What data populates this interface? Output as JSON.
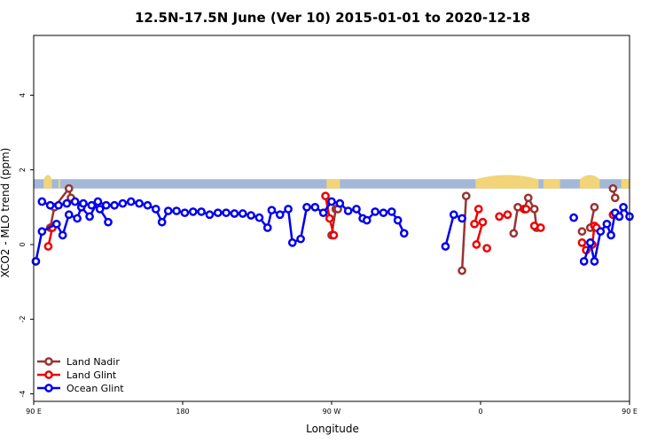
{
  "chart_data": {
    "type": "line",
    "title": "12.5N-17.5N June (Ver 10)   2015-01-01 to 2020-12-18",
    "xlabel": "Longitude",
    "ylabel": "XCO2 - MLO trend (ppm)",
    "xlim": [
      90,
      450
    ],
    "ylim": [
      -4.2,
      5.6
    ],
    "x_ticks": [
      {
        "value": 90,
        "label": "90 E"
      },
      {
        "value": 180,
        "label": "180"
      },
      {
        "value": 270,
        "label": "90 W"
      },
      {
        "value": 360,
        "label": "0"
      },
      {
        "value": 450,
        "label": "90 E"
      }
    ],
    "x_extra_ticks": [
      450
    ],
    "y_ticks": [
      {
        "value": -4,
        "label": "-4"
      },
      {
        "value": -2,
        "label": "-2"
      },
      {
        "value": 0,
        "label": "0"
      },
      {
        "value": 2,
        "label": "2"
      },
      {
        "value": 4,
        "label": "4"
      }
    ],
    "land_band": {
      "ymin": 1.5,
      "ymax": 1.75,
      "ocean_color": "#a3b8d8",
      "land_color": "#f2d479",
      "land_segments": [
        [
          96,
          101
        ],
        [
          105,
          106
        ],
        [
          267,
          275
        ],
        [
          357,
          395
        ],
        [
          398,
          408
        ],
        [
          420,
          432
        ],
        [
          445,
          450
        ]
      ]
    },
    "legend_position": "bottom-left",
    "series": [
      {
        "name": "Land Nadir",
        "color": "#993333",
        "segments": [
          [
            [
              100,
              0.45
            ],
            [
              102.5,
              1.0
            ],
            [
              111.3,
              1.5
            ],
            [
              112.5,
              1.25
            ]
          ],
          [
            [
              270,
              0.25
            ],
            [
              272.5,
              0.95
            ],
            [
              273.8,
              0.95
            ]
          ],
          [
            [
              348.8,
              -0.7
            ],
            [
              351.3,
              1.3
            ]
          ],
          [
            [
              380,
              0.3
            ],
            [
              382.5,
              1.0
            ],
            [
              386.3,
              0.95
            ],
            [
              388.8,
              1.25
            ],
            [
              392.5,
              0.95
            ],
            [
              393.8,
              0.45
            ]
          ],
          [
            [
              421.3,
              0.35
            ]
          ],
          [
            [
              426.3,
              0.45
            ],
            [
              428.8,
              1.0
            ]
          ],
          [
            [
              440,
              1.5
            ],
            [
              441.3,
              1.25
            ]
          ]
        ]
      },
      {
        "name": "Land Glint",
        "color": "#ee0000",
        "segments": [
          [
            [
              98.8,
              -0.05
            ],
            [
              101.3,
              0.45
            ]
          ],
          [
            [
              266.3,
              1.3
            ],
            [
              268.8,
              0.7
            ],
            [
              271.3,
              0.25
            ]
          ],
          [
            [
              356.3,
              0.55
            ],
            [
              358.8,
              0.95
            ]
          ],
          [
            [
              357.5,
              0.0
            ],
            [
              361.3,
              0.6
            ]
          ],
          [
            [
              363.8,
              -0.1
            ]
          ],
          [
            [
              371.3,
              0.75
            ],
            [
              376.3,
              0.8
            ]
          ],
          [
            [
              386.3,
              0.95
            ],
            [
              387.5,
              0.95
            ]
          ],
          [
            [
              392.5,
              0.5
            ],
            [
              396.3,
              0.45
            ]
          ],
          [
            [
              421.3,
              0.05
            ],
            [
              423.8,
              -0.15
            ]
          ],
          [
            [
              427.5,
              0.0
            ],
            [
              428.8,
              0.5
            ],
            [
              430.0,
              0.45
            ]
          ],
          [
            [
              440,
              0.8
            ],
            [
              443.8,
              0.75
            ]
          ]
        ]
      },
      {
        "name": "Ocean Glint",
        "color": "#0000ee",
        "segments": [
          [
            [
              91.3,
              -0.45
            ],
            [
              95,
              0.35
            ],
            [
              103.8,
              0.55
            ],
            [
              107.5,
              0.25
            ],
            [
              111.3,
              0.8
            ],
            [
              116.3,
              0.7
            ],
            [
              118.8,
              1.0
            ],
            [
              123.8,
              0.75
            ],
            [
              128.8,
              1.15
            ],
            [
              133.8,
              1.05
            ],
            [
              138.8,
              1.05
            ],
            [
              143.8,
              1.1
            ],
            [
              148.8,
              1.15
            ],
            [
              153.8,
              1.1
            ],
            [
              158.8,
              1.05
            ],
            [
              163.8,
              0.95
            ],
            [
              167.5,
              0.6
            ],
            [
              171.3,
              0.9
            ],
            [
              176.3,
              0.9
            ],
            [
              181.3,
              0.85
            ],
            [
              186.3,
              0.88
            ],
            [
              191.3,
              0.88
            ],
            [
              196.3,
              0.8
            ],
            [
              201.3,
              0.85
            ],
            [
              206.3,
              0.85
            ],
            [
              211.3,
              0.83
            ],
            [
              216.3,
              0.83
            ],
            [
              221.3,
              0.78
            ],
            [
              226.3,
              0.72
            ],
            [
              231.3,
              0.45
            ],
            [
              233.8,
              0.92
            ],
            [
              238.8,
              0.8
            ],
            [
              243.8,
              0.95
            ],
            [
              246.3,
              0.05
            ],
            [
              251.3,
              0.15
            ],
            [
              255,
              1.0
            ],
            [
              260,
              1.0
            ],
            [
              265,
              0.85
            ],
            [
              270,
              1.15
            ],
            [
              275,
              1.1
            ],
            [
              280,
              0.9
            ],
            [
              285,
              0.95
            ],
            [
              288.8,
              0.7
            ],
            [
              291.3,
              0.65
            ],
            [
              296.3,
              0.88
            ],
            [
              301.3,
              0.85
            ],
            [
              306.3,
              0.88
            ],
            [
              310,
              0.65
            ],
            [
              313.8,
              0.3
            ]
          ],
          [
            [
              338.8,
              -0.05
            ],
            [
              343.8,
              0.8
            ],
            [
              348.8,
              0.7
            ]
          ],
          [
            [
              416.3,
              0.72
            ]
          ],
          [
            [
              422.5,
              -0.45
            ],
            [
              426.3,
              0.05
            ],
            [
              428.8,
              -0.45
            ],
            [
              432.5,
              0.35
            ],
            [
              436.3,
              0.55
            ],
            [
              438.8,
              0.25
            ],
            [
              441.3,
              0.85
            ],
            [
              443.8,
              0.75
            ],
            [
              446.3,
              1.0
            ],
            [
              450,
              0.75
            ],
            [
              455,
              1.15
            ],
            [
              460,
              1.05
            ],
            [
              465,
              1.05
            ],
            [
              470,
              1.1
            ],
            [
              475,
              1.15
            ],
            [
              480,
              1.1
            ],
            [
              485,
              1.05
            ],
            [
              490,
              0.95
            ],
            [
              495,
              0.6
            ]
          ]
        ]
      }
    ]
  }
}
